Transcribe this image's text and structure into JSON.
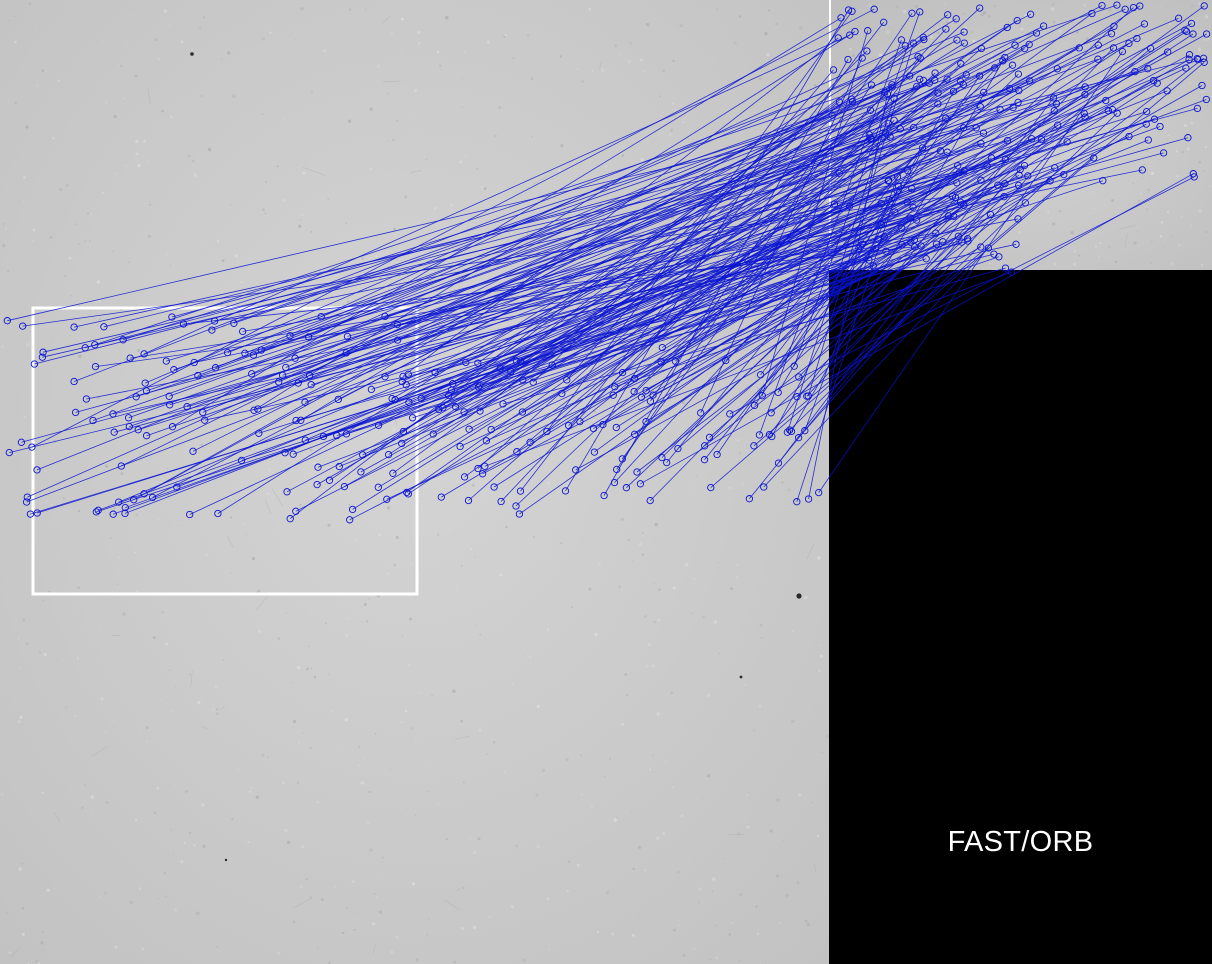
{
  "figure": {
    "method_label": "FAST/ORB",
    "colors": {
      "paper": "#c9c9c9",
      "paper_light": "#d6d6d6",
      "divider": "#ffffff",
      "match_lines": "#0a14d2",
      "keypoints": "#0a14d2",
      "roi_box": "#ffffff",
      "empty_region": "#000000"
    },
    "match_count": 240
  }
}
